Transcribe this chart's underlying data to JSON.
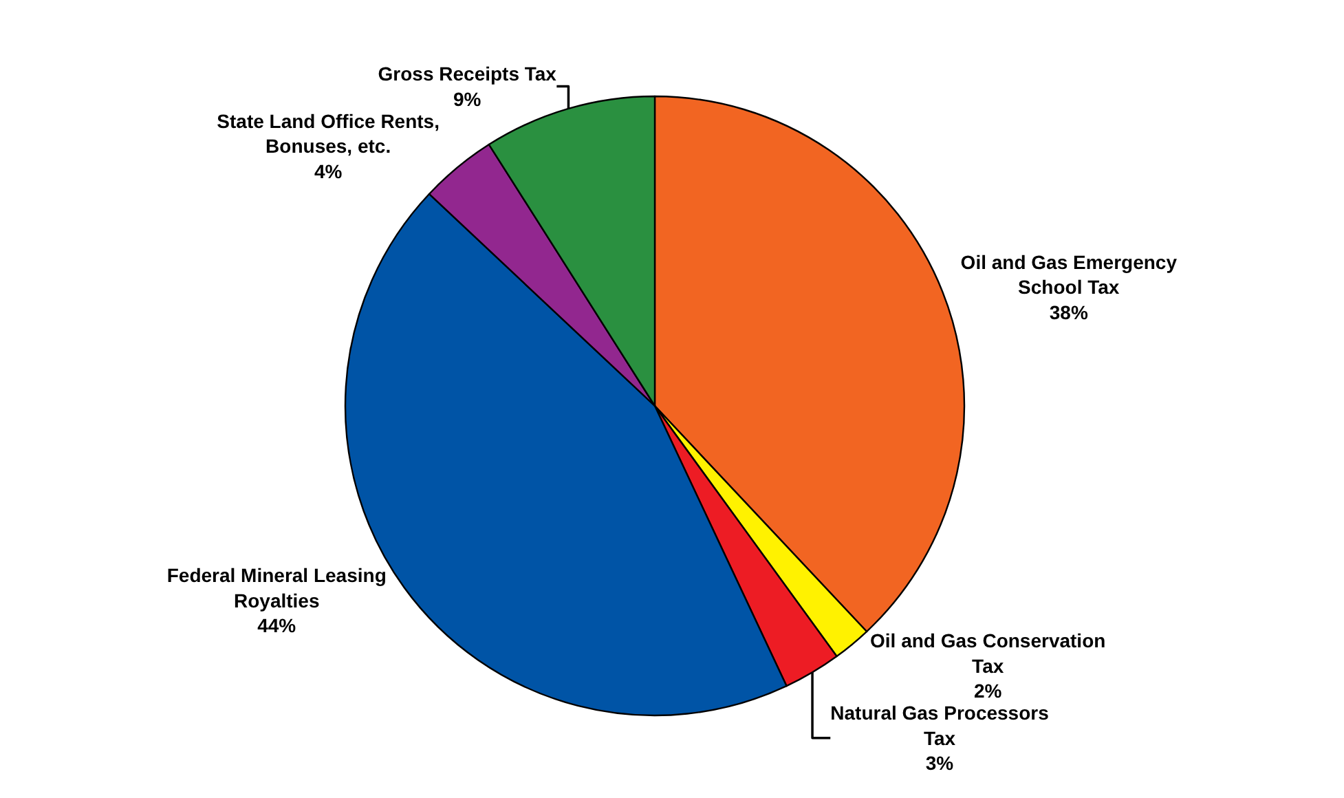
{
  "chart_data": {
    "type": "pie",
    "categories": [
      "Oil and Gas Emergency School Tax",
      "Oil and Gas Conservation Tax",
      "Natural Gas Processors Tax",
      "Federal Mineral Leasing Royalties",
      "State Land Office Rents, Bonuses, etc.",
      "Gross Receipts Tax"
    ],
    "values": [
      38,
      2,
      3,
      44,
      4,
      9
    ],
    "value_labels": [
      "38%",
      "2%",
      "3%",
      "44%",
      "4%",
      "9%"
    ],
    "colors": [
      "#f26522",
      "#fff200",
      "#ed1c24",
      "#0054a6",
      "#92278f",
      "#2a9040"
    ],
    "legend": false
  }
}
